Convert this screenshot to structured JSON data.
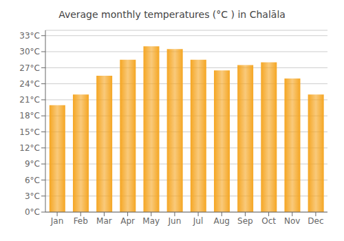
{
  "chart_data": {
    "type": "bar",
    "title": "Average monthly temperatures (°C ) in Chalāla",
    "categories": [
      "Jan",
      "Feb",
      "Mar",
      "Apr",
      "May",
      "Jun",
      "Jul",
      "Aug",
      "Sep",
      "Oct",
      "Nov",
      "Dec"
    ],
    "values": [
      20,
      22,
      25.5,
      28.5,
      31,
      30.5,
      28.5,
      26.5,
      27.5,
      28,
      25,
      22
    ],
    "color": "#F5A623",
    "ylim": [
      0,
      34
    ],
    "yticks": [
      {
        "value": 0,
        "label": "0°C"
      },
      {
        "value": 3,
        "label": "3°C"
      },
      {
        "value": 6,
        "label": "6°C"
      },
      {
        "value": 9,
        "label": "9°C"
      },
      {
        "value": 12,
        "label": "12°C"
      },
      {
        "value": 15,
        "label": "15°C"
      },
      {
        "value": 18,
        "label": "18°C"
      },
      {
        "value": 21,
        "label": "21°C"
      },
      {
        "value": 24,
        "label": "24°C"
      },
      {
        "value": 27,
        "label": "27°C"
      },
      {
        "value": 30,
        "label": "30°C"
      },
      {
        "value": 33,
        "label": "33°C"
      }
    ],
    "grid": true
  }
}
